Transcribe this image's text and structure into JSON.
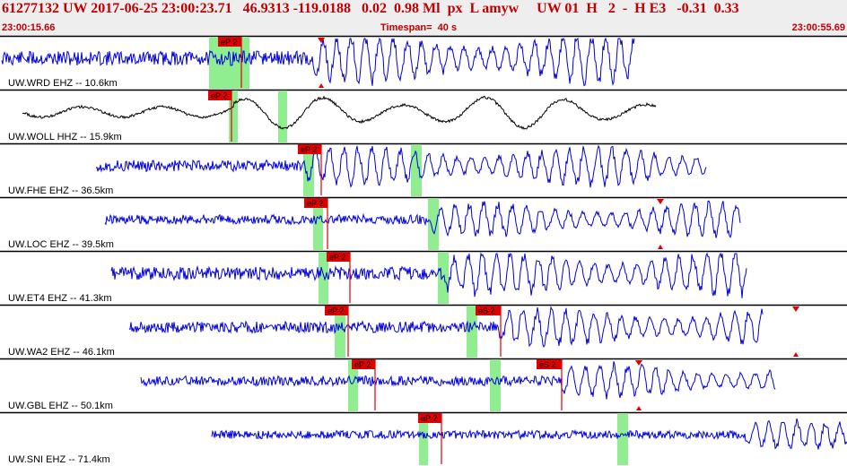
{
  "header": {
    "title": "61277132 UW 2017-06-25 23:00:23.71   46.9313 -119.0188   0.02  0.98 Ml  px  L amyw     UW 01  H   2  -  H E3   -0.31  0.33",
    "start_time": "23:00:15.66",
    "timespan": "Timespan=  40 s",
    "end_time": "23:00:55.69"
  },
  "colors": {
    "header_text": "#c00000",
    "trace": "#0000e0",
    "trace_alt": "#000000",
    "pick": "#e00000",
    "window": "#90ee90",
    "background": "#ffffff"
  },
  "traces": [
    {
      "label": "UW.WRD EHZ -- 10.6km",
      "color": "#0000e0",
      "picks": [
        {
          "type": "P",
          "label": "eP 2"
        }
      ]
    },
    {
      "label": "UW.WOLL HHZ -- 15.9km",
      "color": "#000000",
      "picks": [
        {
          "type": "P",
          "label": "eP 2"
        }
      ]
    },
    {
      "label": "UW.FHE EHZ -- 36.5km",
      "color": "#0000e0",
      "picks": [
        {
          "type": "P",
          "label": "eP 2"
        }
      ]
    },
    {
      "label": "UW.LOC EHZ -- 39.5km",
      "color": "#0000e0",
      "picks": [
        {
          "type": "P",
          "label": "eP 2"
        }
      ]
    },
    {
      "label": "UW.ET4 EHZ -- 41.3km",
      "color": "#0000e0",
      "picks": [
        {
          "type": "P",
          "label": "eP 2"
        }
      ]
    },
    {
      "label": "UW.WA2 EHZ -- 46.1km",
      "color": "#0000e0",
      "picks": [
        {
          "type": "P",
          "label": "eP 2"
        },
        {
          "type": "S",
          "label": "eS 2"
        }
      ]
    },
    {
      "label": "UW.GBL EHZ -- 50.1km",
      "color": "#0000e0",
      "picks": [
        {
          "type": "P",
          "label": "eP 2"
        },
        {
          "type": "S",
          "label": "eS 2"
        }
      ]
    },
    {
      "label": "UW.SNI EHZ -- 71.4km",
      "color": "#0000e0",
      "picks": [
        {
          "type": "P",
          "label": "eP 2"
        }
      ]
    }
  ]
}
